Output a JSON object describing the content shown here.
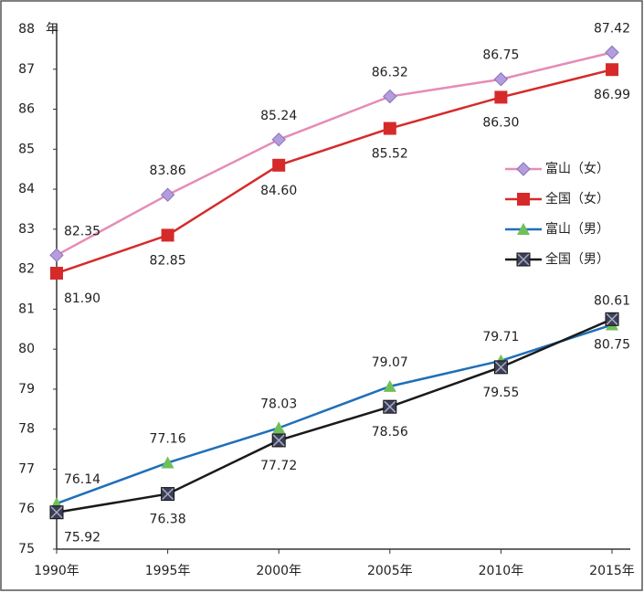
{
  "chart_data": {
    "type": "line",
    "y_unit": "年",
    "categories": [
      "1990年",
      "1995年",
      "2000年",
      "2005年",
      "2010年",
      "2015年"
    ],
    "series": [
      {
        "name": "富山（女）",
        "color": "#e58cb6",
        "marker_color": "#b39ddb",
        "marker": "diamond",
        "values": [
          82.35,
          83.86,
          85.24,
          86.32,
          86.75,
          87.42
        ],
        "label_side": "above"
      },
      {
        "name": "全国（女）",
        "color": "#d62a2a",
        "marker_color": "#d62a2a",
        "marker": "square",
        "values": [
          81.9,
          82.85,
          84.6,
          85.52,
          86.3,
          86.99
        ],
        "value_labels": [
          "81.90",
          "82.85",
          "84.60",
          "85.52",
          "86.30",
          "86.99"
        ],
        "label_side": "below"
      },
      {
        "name": "富山（男）",
        "color": "#1f6fb8",
        "marker_color": "#6fbf5a",
        "marker": "triangle",
        "values": [
          76.14,
          77.16,
          78.03,
          79.07,
          79.71,
          80.61
        ],
        "label_side": "above"
      },
      {
        "name": "全国（男）",
        "color": "#1a1a1a",
        "marker_color": "#3a3f5a",
        "marker": "squarex",
        "values": [
          75.92,
          76.38,
          77.72,
          78.56,
          79.55,
          80.75
        ],
        "label_side": "below"
      }
    ],
    "ylim": [
      75,
      88
    ],
    "yticks": [
      75,
      76,
      77,
      78,
      79,
      80,
      81,
      82,
      83,
      84,
      85,
      86,
      87,
      88
    ]
  }
}
